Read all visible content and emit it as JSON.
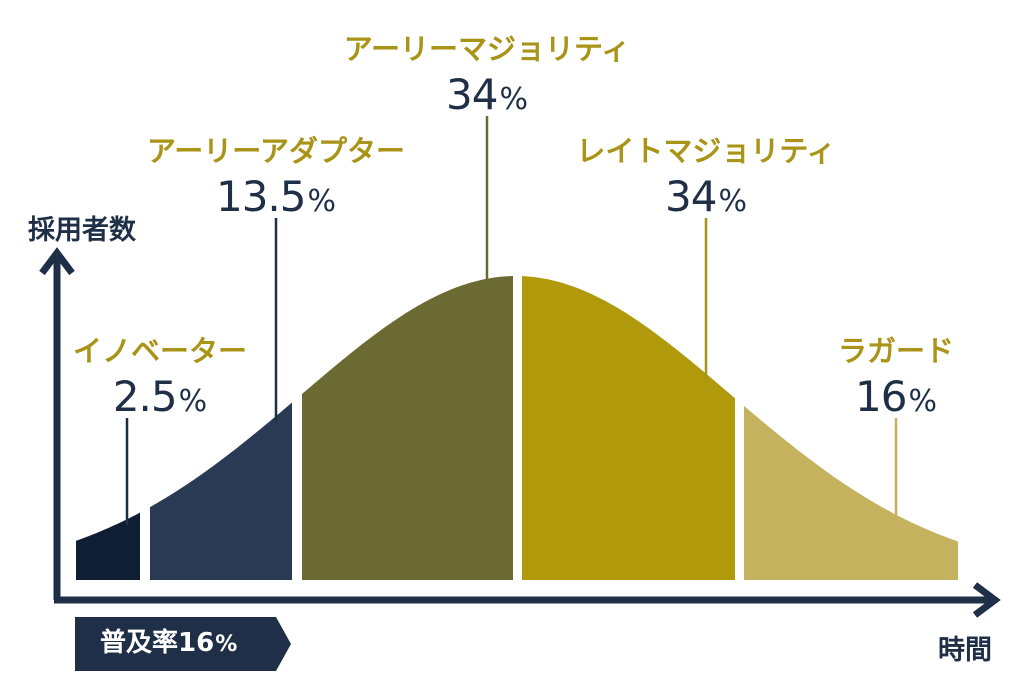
{
  "axes": {
    "y_label": "採用者数",
    "x_label": "時間"
  },
  "segments": [
    {
      "name": "イノベーター",
      "percent": "2.5",
      "unit": "%",
      "color": "#0f1e32"
    },
    {
      "name": "アーリーアダプター",
      "percent": "13.5",
      "unit": "%",
      "color": "#2a3a55"
    },
    {
      "name": "アーリーマジョリティ",
      "percent": "34",
      "unit": "%",
      "color": "#6b6a33"
    },
    {
      "name": "レイトマジョリティ",
      "percent": "34",
      "unit": "%",
      "color": "#b09a0c"
    },
    {
      "name": "ラガード",
      "percent": "16",
      "unit": "%",
      "color": "#c4b25e"
    }
  ],
  "penetration": {
    "text": "普及率16",
    "unit": "%",
    "color": "#1f2f47"
  },
  "colors": {
    "axis": "#1f2f47",
    "label_name": "#a99418",
    "label_value": "#1f2f47"
  }
}
